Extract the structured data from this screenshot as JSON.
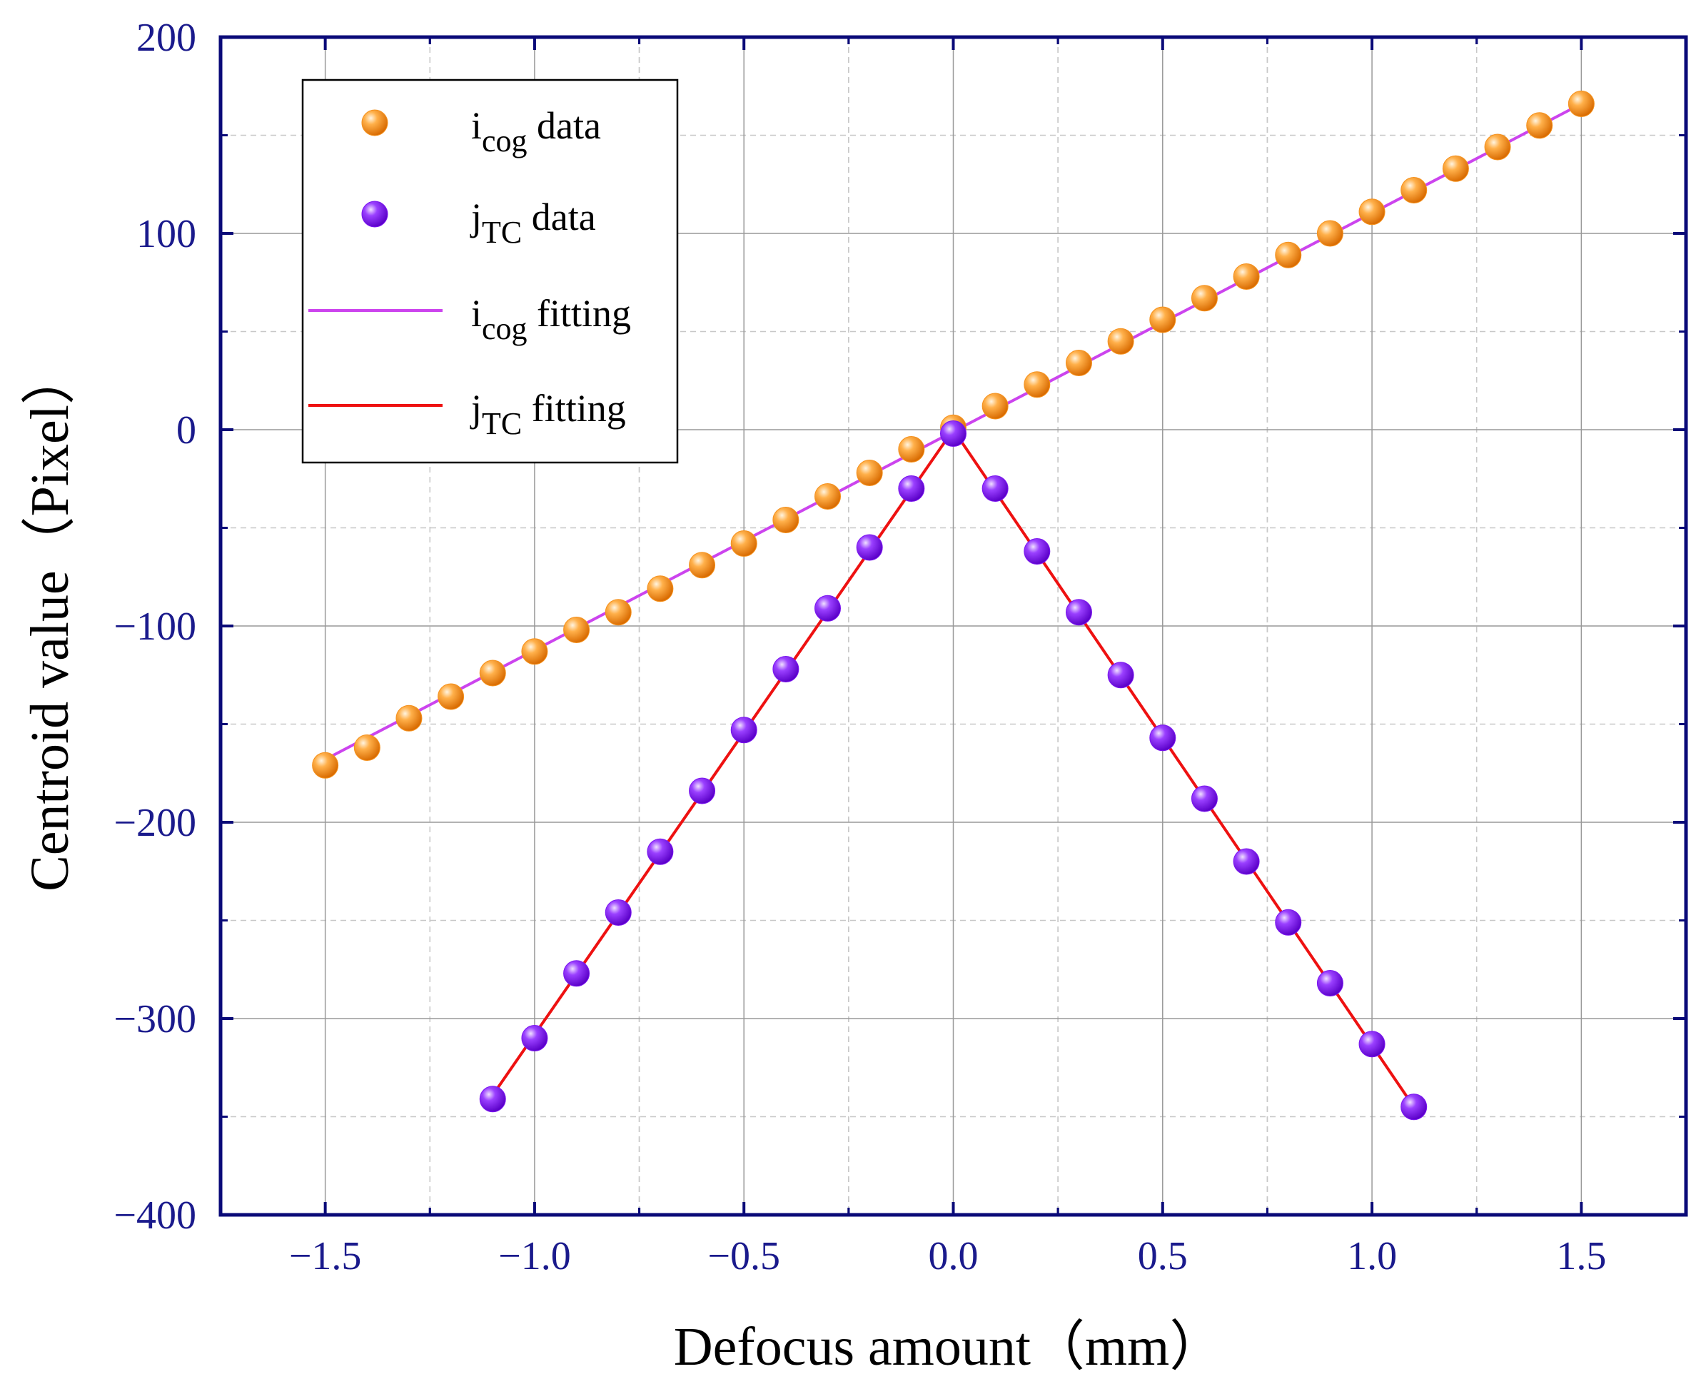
{
  "chart_data": {
    "type": "scatter",
    "xlabel": "Defocus amount（mm）",
    "ylabel": "Centroid value（Pixel）",
    "xlim": [
      -1.75,
      1.75
    ],
    "ylim": [
      -400,
      200
    ],
    "x_ticks": [
      -1.5,
      -1.0,
      -0.5,
      0.0,
      0.5,
      1.0,
      1.5
    ],
    "x_tick_labels": [
      "-1.5",
      "-1.0",
      "-0.5",
      "0.0",
      "0.5",
      "1.0",
      "1.5"
    ],
    "y_ticks": [
      -400,
      -300,
      -200,
      -100,
      0,
      100,
      200
    ],
    "y_tick_labels": [
      "-400",
      "-300",
      "-200",
      "-100",
      "0",
      "100",
      "200"
    ],
    "grid": true,
    "legend_position": "top-left",
    "series": [
      {
        "name": "icog data",
        "name_main": "i",
        "name_sub": "cog",
        "name_suffix": " data",
        "kind": "points",
        "color": "#f5921e",
        "x": [
          -1.5,
          -1.4,
          -1.3,
          -1.2,
          -1.1,
          -1.0,
          -0.9,
          -0.8,
          -0.7,
          -0.6,
          -0.5,
          -0.4,
          -0.3,
          -0.2,
          -0.1,
          0.0,
          0.1,
          0.2,
          0.3,
          0.4,
          0.5,
          0.6,
          0.7,
          0.8,
          0.9,
          1.0,
          1.1,
          1.2,
          1.3,
          1.4,
          1.5
        ],
        "y": [
          -171,
          -162,
          -147,
          -136,
          -124,
          -113,
          -102,
          -93,
          -81,
          -69,
          -58,
          -46,
          -34,
          -22,
          -10,
          1,
          12,
          23,
          34,
          45,
          56,
          67,
          78,
          89,
          100,
          111,
          122,
          133,
          144,
          155,
          166
        ]
      },
      {
        "name": "jTC data",
        "name_main": "j",
        "name_sub": "TC",
        "name_suffix": " data",
        "kind": "points",
        "color": "#7b16f0",
        "x": [
          -1.1,
          -1.0,
          -0.9,
          -0.8,
          -0.7,
          -0.6,
          -0.5,
          -0.4,
          -0.3,
          -0.2,
          -0.1,
          0.0,
          0.1,
          0.2,
          0.3,
          0.4,
          0.5,
          0.6,
          0.7,
          0.8,
          0.9,
          1.0,
          1.1
        ],
        "y": [
          -341,
          -310,
          -277,
          -246,
          -215,
          -184,
          -153,
          -122,
          -91,
          -60,
          -30,
          -2,
          -30,
          -62,
          -93,
          -125,
          -157,
          -188,
          -220,
          -251,
          -282,
          -313,
          -345
        ]
      },
      {
        "name": "icog fitting",
        "name_main": "i",
        "name_sub": "cog",
        "name_suffix": " fitting",
        "kind": "line",
        "color": "#cc44ee",
        "x": [
          -1.5,
          1.5
        ],
        "y": [
          -168,
          166
        ]
      },
      {
        "name": "jTC fitting",
        "name_main": "j",
        "name_sub": "TC",
        "name_suffix": " fitting",
        "kind": "line",
        "color": "#ee1111",
        "x": [
          -1.1,
          0.0,
          1.1
        ],
        "y": [
          -339,
          0,
          -345
        ]
      }
    ]
  }
}
